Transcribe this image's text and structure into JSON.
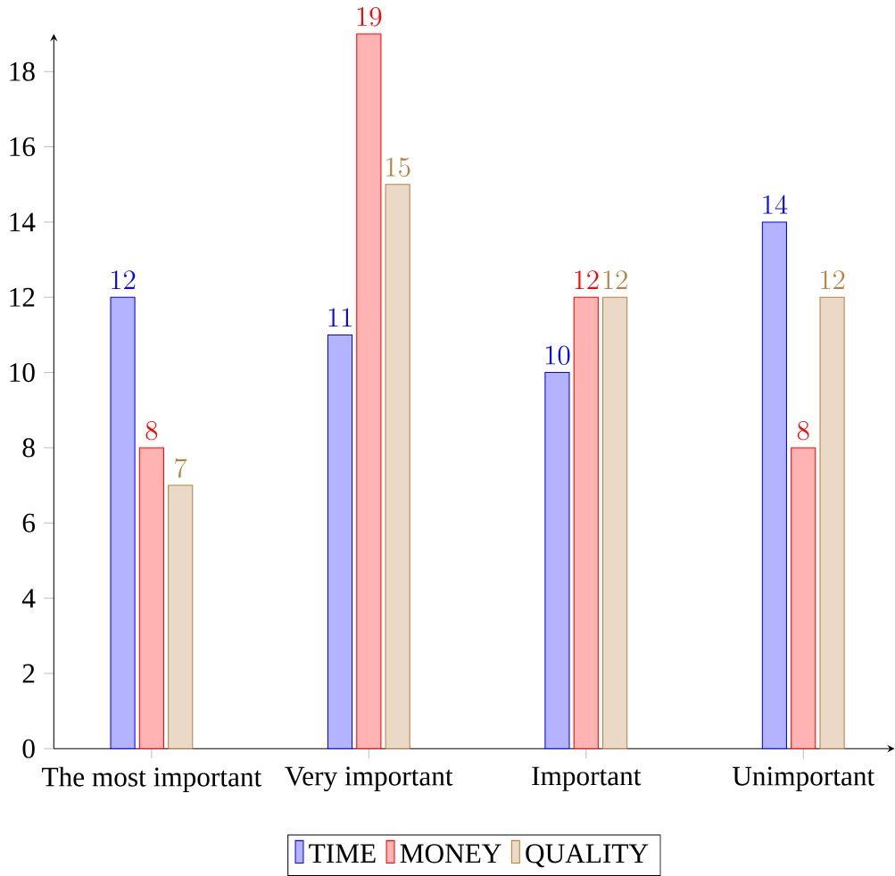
{
  "chart_data": {
    "type": "bar",
    "categories": [
      "The most important",
      "Very important",
      "Important",
      "Unimportant"
    ],
    "series": [
      {
        "name": "TIME",
        "color": "#b3b3ff",
        "values": [
          12,
          11,
          10,
          14
        ]
      },
      {
        "name": "MONEY",
        "color": "#ffb3b3",
        "values": [
          8,
          19,
          12,
          8
        ]
      },
      {
        "name": "QUALITY",
        "color": "#ead9c6",
        "values": [
          7,
          15,
          12,
          12
        ]
      }
    ],
    "ylim": [
      0,
      19
    ],
    "yticks": [
      0,
      2,
      4,
      6,
      8,
      10,
      12,
      14,
      16,
      18
    ],
    "data_labels": true,
    "legend": "bottom",
    "grid": false
  }
}
